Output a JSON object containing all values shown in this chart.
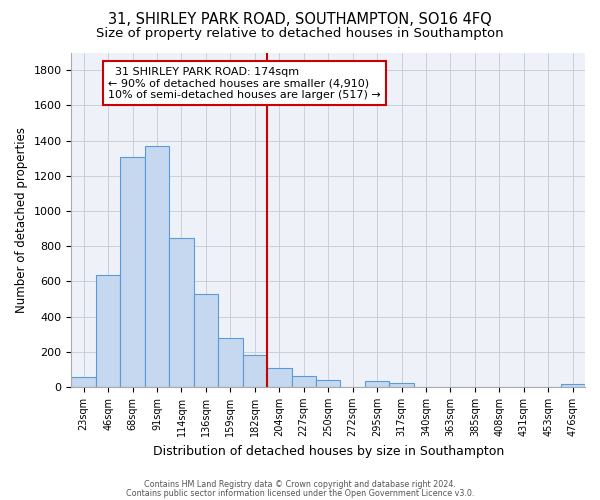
{
  "title1": "31, SHIRLEY PARK ROAD, SOUTHAMPTON, SO16 4FQ",
  "title2": "Size of property relative to detached houses in Southampton",
  "xlabel": "Distribution of detached houses by size in Southampton",
  "ylabel": "Number of detached properties",
  "categories": [
    "23sqm",
    "46sqm",
    "68sqm",
    "91sqm",
    "114sqm",
    "136sqm",
    "159sqm",
    "182sqm",
    "204sqm",
    "227sqm",
    "250sqm",
    "272sqm",
    "295sqm",
    "317sqm",
    "340sqm",
    "363sqm",
    "385sqm",
    "408sqm",
    "431sqm",
    "453sqm",
    "476sqm"
  ],
  "values": [
    55,
    635,
    1305,
    1370,
    848,
    528,
    278,
    183,
    108,
    65,
    38,
    0,
    35,
    25,
    0,
    0,
    0,
    0,
    0,
    0,
    14
  ],
  "bar_color": "#c5d8f0",
  "bar_edge_color": "#5b9bd5",
  "vline_x": 7.5,
  "vline_color": "#cc0000",
  "annotation_text": "  31 SHIRLEY PARK ROAD: 174sqm\n← 90% of detached houses are smaller (4,910)\n10% of semi-detached houses are larger (517) →",
  "annotation_box_color": "#ffffff",
  "annotation_box_edge": "#cc0000",
  "ylim": [
    0,
    1900
  ],
  "yticks": [
    0,
    200,
    400,
    600,
    800,
    1000,
    1200,
    1400,
    1600,
    1800
  ],
  "footer1": "Contains HM Land Registry data © Crown copyright and database right 2024.",
  "footer2": "Contains public sector information licensed under the Open Government Licence v3.0.",
  "bg_color": "#eef2f8",
  "grid_color": "#c8d0de",
  "title1_fontsize": 10.5,
  "title2_fontsize": 9.5,
  "annot_fontsize": 8.0
}
